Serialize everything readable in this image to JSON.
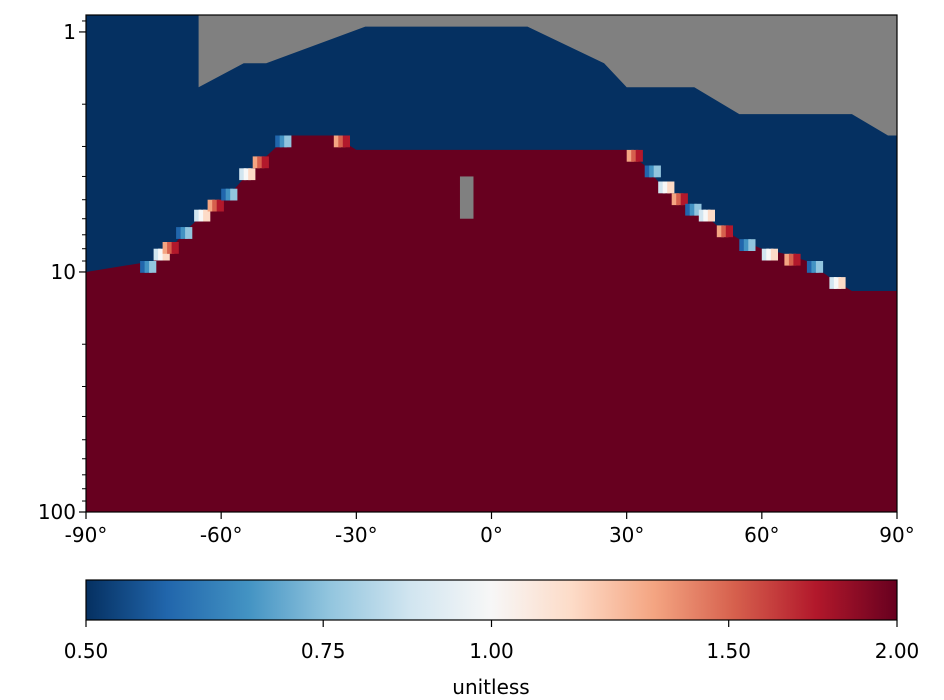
{
  "chart_data": {
    "type": "heatmap",
    "title": "",
    "xlabel": "",
    "ylabel": "",
    "y_scale": "log",
    "y_inverted": true,
    "xlim": [
      -90,
      90
    ],
    "ylim": [
      100,
      0.85
    ],
    "x_ticks": [
      {
        "value": -90,
        "label": "-90°"
      },
      {
        "value": -60,
        "label": "-60°"
      },
      {
        "value": -30,
        "label": "-30°"
      },
      {
        "value": 0,
        "label": "0°"
      },
      {
        "value": 30,
        "label": "30°"
      },
      {
        "value": 60,
        "label": "60°"
      },
      {
        "value": 90,
        "label": "90°"
      }
    ],
    "y_ticks": [
      {
        "value": 1,
        "label": "1"
      },
      {
        "value": 10,
        "label": "10"
      },
      {
        "value": 100,
        "label": "100"
      }
    ],
    "missing_color": "#808080",
    "field_description": "ratio field over latitude and pressure: ~2.0 below a tropopause-like boundary, ~0.5 above it, missing (gray) in the upper tropics",
    "regions": {
      "high_value": 2.0,
      "low_value": 0.5,
      "boundary_pressure_by_lat": [
        [
          -90,
          10.0
        ],
        [
          -75,
          9.0
        ],
        [
          -72,
          8.0
        ],
        [
          -70,
          7.5
        ],
        [
          -67,
          6.5
        ],
        [
          -63,
          5.5
        ],
        [
          -60,
          5.0
        ],
        [
          -57,
          4.5
        ],
        [
          -53,
          3.7
        ],
        [
          -50,
          3.3
        ],
        [
          -45,
          2.7
        ],
        [
          -35,
          2.7
        ],
        [
          -30,
          3.1
        ],
        [
          0,
          3.1
        ],
        [
          30,
          3.1
        ],
        [
          34,
          3.6
        ],
        [
          37,
          4.2
        ],
        [
          40,
          4.7
        ],
        [
          43,
          5.2
        ],
        [
          46,
          5.5
        ],
        [
          50,
          6.4
        ],
        [
          55,
          7.3
        ],
        [
          60,
          8.0
        ],
        [
          65,
          8.4
        ],
        [
          70,
          9.0
        ],
        [
          75,
          10.5
        ],
        [
          80,
          12.0
        ],
        [
          90,
          12.0
        ]
      ],
      "missing_pressure_by_lat": [
        [
          -65,
          1.7
        ],
        [
          -55,
          1.35
        ],
        [
          -50,
          1.35
        ],
        [
          -28,
          0.95
        ],
        [
          8,
          0.95
        ],
        [
          25,
          1.35
        ],
        [
          30,
          1.7
        ],
        [
          40,
          1.7
        ],
        [
          45,
          1.7
        ],
        [
          55,
          2.2
        ],
        [
          80,
          2.2
        ],
        [
          88,
          2.7
        ],
        [
          90,
          2.7
        ]
      ],
      "missing_patch": {
        "lat": [
          -7,
          -4
        ],
        "pressure": [
          4.0,
          6.0
        ]
      }
    },
    "colorbar": {
      "min": 0.5,
      "max": 2.0,
      "ticks": [
        {
          "value": 0.5,
          "label": "0.50"
        },
        {
          "value": 0.75,
          "label": "0.75"
        },
        {
          "value": 1.0,
          "label": "1.00"
        },
        {
          "value": 1.5,
          "label": "1.50"
        },
        {
          "value": 2.0,
          "label": "2.00"
        }
      ],
      "label": "unitless",
      "scale": "log"
    }
  }
}
